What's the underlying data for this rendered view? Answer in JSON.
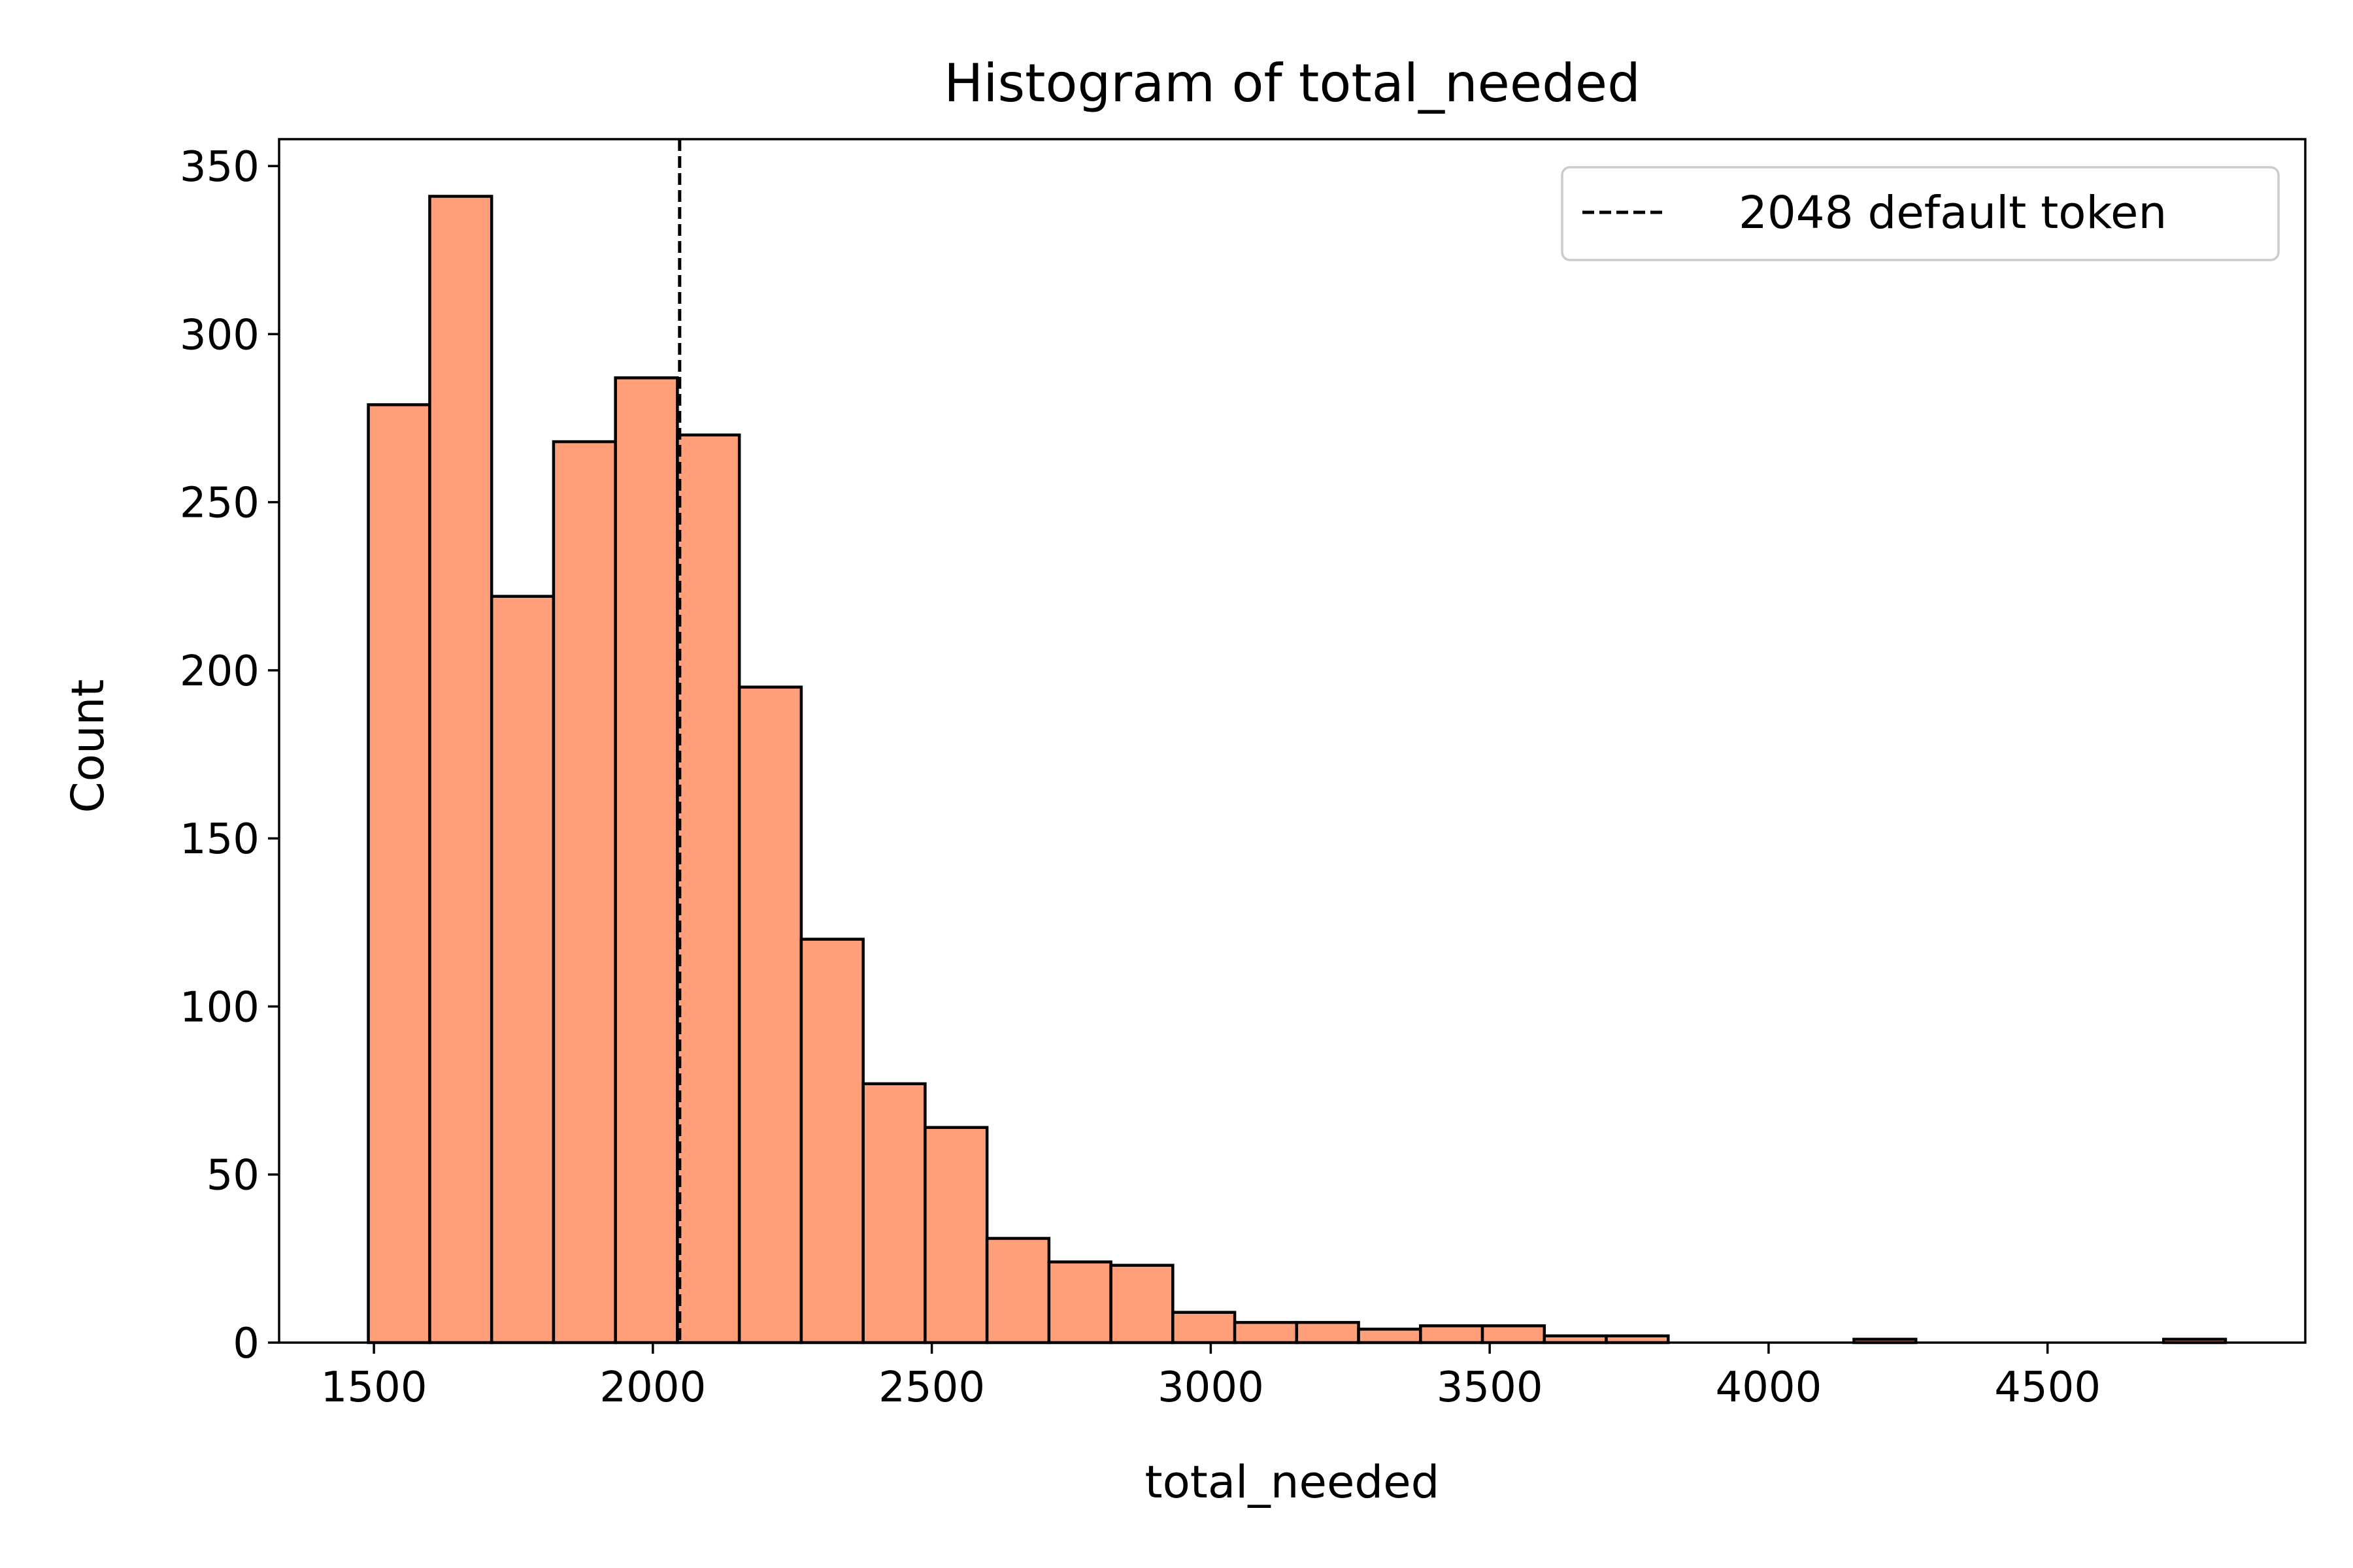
{
  "chart_data": {
    "type": "bar",
    "title": "Histogram of total_needed",
    "xlabel": "total_needed",
    "ylabel": "Count",
    "xlim": [
      1330,
      4962
    ],
    "ylim": [
      0,
      358
    ],
    "bar_color": "#ffa07a",
    "edge_color": "#000000",
    "grid": false,
    "legend_position": "top-right",
    "xticks": [
      "1500",
      "2000",
      "2500",
      "3000",
      "3500",
      "4000",
      "4500"
    ],
    "xtick_values": [
      1500,
      2000,
      2500,
      3000,
      3500,
      4000,
      4500
    ],
    "yticks": [
      "0",
      "50",
      "100",
      "150",
      "200",
      "250",
      "300",
      "350"
    ],
    "ytick_values": [
      0,
      50,
      100,
      150,
      200,
      250,
      300,
      350
    ],
    "bins": [
      {
        "x0": 1490,
        "x1": 1600,
        "count": 279
      },
      {
        "x0": 1600,
        "x1": 1711,
        "count": 341
      },
      {
        "x0": 1711,
        "x1": 1822,
        "count": 222
      },
      {
        "x0": 1822,
        "x1": 1933,
        "count": 268
      },
      {
        "x0": 1933,
        "x1": 2044,
        "count": 287
      },
      {
        "x0": 2044,
        "x1": 2155,
        "count": 270
      },
      {
        "x0": 2155,
        "x1": 2266,
        "count": 195
      },
      {
        "x0": 2266,
        "x1": 2377,
        "count": 120
      },
      {
        "x0": 2377,
        "x1": 2488,
        "count": 77
      },
      {
        "x0": 2488,
        "x1": 2599,
        "count": 64
      },
      {
        "x0": 2599,
        "x1": 2710,
        "count": 31
      },
      {
        "x0": 2710,
        "x1": 2821,
        "count": 24
      },
      {
        "x0": 2821,
        "x1": 2932,
        "count": 23
      },
      {
        "x0": 2932,
        "x1": 3043,
        "count": 9
      },
      {
        "x0": 3043,
        "x1": 3154,
        "count": 6
      },
      {
        "x0": 3154,
        "x1": 3265,
        "count": 6
      },
      {
        "x0": 3265,
        "x1": 3376,
        "count": 4
      },
      {
        "x0": 3376,
        "x1": 3487,
        "count": 5
      },
      {
        "x0": 3487,
        "x1": 3598,
        "count": 5
      },
      {
        "x0": 3598,
        "x1": 3709,
        "count": 2
      },
      {
        "x0": 3709,
        "x1": 3820,
        "count": 2
      },
      {
        "x0": 3820,
        "x1": 3931,
        "count": 0
      },
      {
        "x0": 3931,
        "x1": 4042,
        "count": 0
      },
      {
        "x0": 4042,
        "x1": 4153,
        "count": 0
      },
      {
        "x0": 4153,
        "x1": 4264,
        "count": 1
      },
      {
        "x0": 4264,
        "x1": 4375,
        "count": 0
      },
      {
        "x0": 4375,
        "x1": 4486,
        "count": 0
      },
      {
        "x0": 4486,
        "x1": 4597,
        "count": 0
      },
      {
        "x0": 4597,
        "x1": 4708,
        "count": 0
      },
      {
        "x0": 4708,
        "x1": 4819,
        "count": 1
      }
    ],
    "reference_line": {
      "x": 2048,
      "style": "dashed",
      "color": "#000000"
    },
    "legend": [
      {
        "label": "2048 default token",
        "style": "dashed"
      }
    ]
  }
}
